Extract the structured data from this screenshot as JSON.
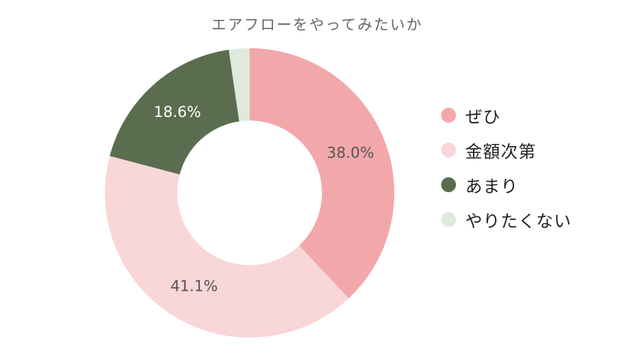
{
  "chart_data": {
    "type": "pie",
    "title": "エアフローをやってみたいか",
    "categories": [
      "ぜひ",
      "金額次第",
      "あまり",
      "やりたくない"
    ],
    "values": [
      38.0,
      41.1,
      18.6,
      2.3
    ],
    "labels": [
      "38.0%",
      "41.1%",
      "18.6%",
      ""
    ],
    "colors": [
      "#f2a8aa",
      "#f9d6d8",
      "#5a6e4f",
      "#dfe9de"
    ],
    "label_colors": [
      "#555555",
      "#555555",
      "#ffffff",
      "#555555"
    ],
    "donut": true,
    "legend_position": "right"
  }
}
